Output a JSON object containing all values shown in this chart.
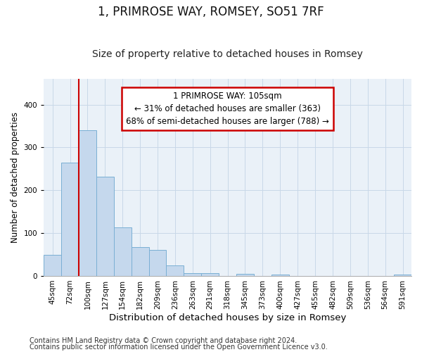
{
  "title": "1, PRIMROSE WAY, ROMSEY, SO51 7RF",
  "subtitle": "Size of property relative to detached houses in Romsey",
  "xlabel": "Distribution of detached houses by size in Romsey",
  "ylabel": "Number of detached properties",
  "categories": [
    "45sqm",
    "72sqm",
    "100sqm",
    "127sqm",
    "154sqm",
    "182sqm",
    "209sqm",
    "236sqm",
    "263sqm",
    "291sqm",
    "318sqm",
    "345sqm",
    "373sqm",
    "400sqm",
    "427sqm",
    "455sqm",
    "482sqm",
    "509sqm",
    "536sqm",
    "564sqm",
    "591sqm"
  ],
  "values": [
    49,
    265,
    340,
    232,
    113,
    67,
    61,
    24,
    7,
    6,
    0,
    5,
    0,
    4,
    0,
    0,
    0,
    0,
    0,
    0,
    4
  ],
  "bar_color": "#c5d8ed",
  "bar_edge_color": "#7aafd4",
  "grid_color": "#c8d8e8",
  "bg_color": "#eaf1f8",
  "property_line_color": "#cc0000",
  "annotation_text": "1 PRIMROSE WAY: 105sqm\n← 31% of detached houses are smaller (363)\n68% of semi-detached houses are larger (788) →",
  "annotation_box_color": "#cc0000",
  "footer_line1": "Contains HM Land Registry data © Crown copyright and database right 2024.",
  "footer_line2": "Contains public sector information licensed under the Open Government Licence v3.0.",
  "ylim": [
    0,
    460
  ],
  "title_fontsize": 12,
  "subtitle_fontsize": 10,
  "xlabel_fontsize": 9.5,
  "ylabel_fontsize": 8.5,
  "tick_fontsize": 7.5,
  "annotation_fontsize": 8.5,
  "footer_fontsize": 7
}
